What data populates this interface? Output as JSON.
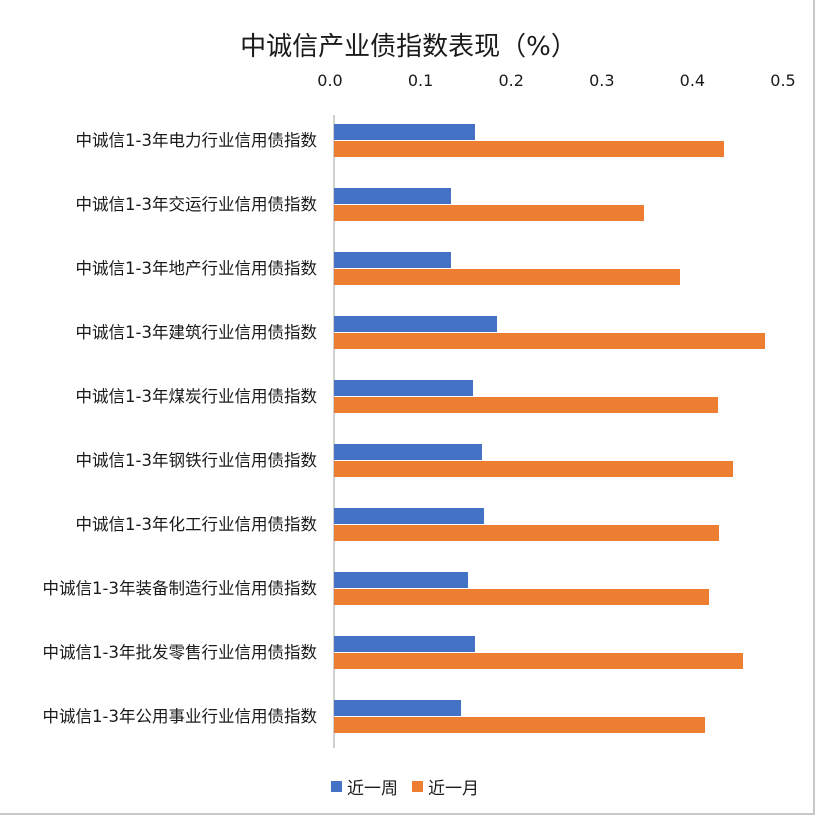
{
  "chart": {
    "title": "中诚信产业债指数表现（%）",
    "x_ticks": [
      "0.0",
      "0.1",
      "0.2",
      "0.3",
      "0.4",
      "0.5"
    ],
    "legend": [
      {
        "label": "近一周",
        "color": "#4472c4"
      },
      {
        "label": "近一月",
        "color": "#ed7d31"
      }
    ]
  },
  "chart_data": {
    "type": "bar",
    "orientation": "horizontal",
    "title": "中诚信产业债指数表现（%）",
    "xlabel": "",
    "ylabel": "",
    "xlim": [
      0,
      0.5
    ],
    "x_ticks": [
      0.0,
      0.1,
      0.2,
      0.3,
      0.4,
      0.5
    ],
    "x_axis_position": "top",
    "grid": false,
    "legend_position": "bottom",
    "categories": [
      "中诚信1-3年电力行业信用债指数",
      "中诚信1-3年交运行业信用债指数",
      "中诚信1-3年地产行业信用债指数",
      "中诚信1-3年建筑行业信用债指数",
      "中诚信1-3年煤炭行业信用债指数",
      "中诚信1-3年钢铁行业信用债指数",
      "中诚信1-3年化工行业信用债指数",
      "中诚信1-3年装备制造行业信用债指数",
      "中诚信1-3年批发零售行业信用债指数",
      "中诚信1-3年公用事业行业信用债指数"
    ],
    "series": [
      {
        "name": "近一周",
        "color": "#4472c4",
        "values": [
          0.156,
          0.129,
          0.129,
          0.18,
          0.153,
          0.163,
          0.166,
          0.148,
          0.156,
          0.14
        ]
      },
      {
        "name": "近一月",
        "color": "#ed7d31",
        "values": [
          0.43,
          0.342,
          0.382,
          0.476,
          0.424,
          0.44,
          0.425,
          0.414,
          0.451,
          0.409
        ]
      }
    ]
  }
}
